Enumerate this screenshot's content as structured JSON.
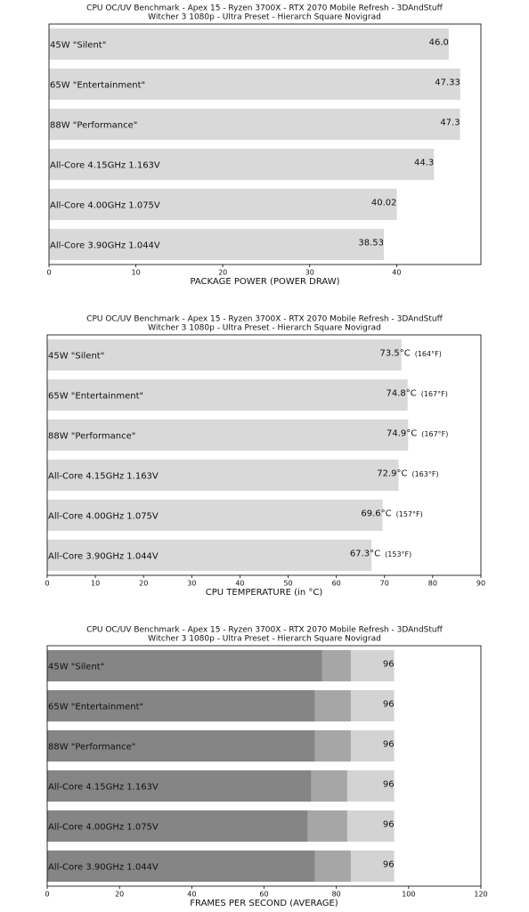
{
  "chart_data": [
    {
      "type": "bar",
      "orientation": "horizontal",
      "title": "CPU OC/UV Benchmark - Apex 15 - Ryzen 3700X - RTX 2070 Mobile Refresh - 3DAndStuff",
      "subtitle": "Witcher 3 1080p - Ultra Preset - Hierarch Square Novigrad",
      "xlabel": "PACKAGE POWER (POWER DRAW)",
      "categories": [
        "45W \"Silent\"",
        "65W \"Entertainment\"",
        "88W \"Performance\"",
        "All-Core 4.15GHz 1.163V",
        "All-Core 4.00GHz 1.075V",
        "All-Core 3.90GHz 1.044V"
      ],
      "values": [
        46.0,
        47.33,
        47.3,
        44.3,
        40.02,
        38.53
      ],
      "value_labels": [
        "46.0",
        "47.33",
        "47.3",
        "44.3",
        "40.02",
        "38.53"
      ],
      "color": "#d9d9d9",
      "xlim": [
        0,
        49.7
      ],
      "xticks": [
        0,
        10,
        20,
        30,
        40
      ]
    },
    {
      "type": "bar",
      "orientation": "horizontal",
      "title": "CPU OC/UV Benchmark - Apex 15 - Ryzen 3700X - RTX 2070 Mobile Refresh - 3DAndStuff",
      "subtitle": "Witcher 3 1080p - Ultra Preset - Hierarch Square Novigrad",
      "xlabel": "CPU TEMPERATURE (in °C)",
      "categories": [
        "45W \"Silent\"",
        "65W \"Entertainment\"",
        "88W \"Performance\"",
        "All-Core 4.15GHz 1.163V",
        "All-Core 4.00GHz 1.075V",
        "All-Core 3.90GHz 1.044V"
      ],
      "values": [
        73.5,
        74.8,
        74.9,
        72.9,
        69.6,
        67.3
      ],
      "value_labels": [
        "73.5°C",
        "74.8°C",
        "74.9°C",
        "72.9°C",
        "69.6°C",
        "67.3°C"
      ],
      "secondary_labels": [
        "(164°F)",
        "(167°F)",
        "(167°F)",
        "(163°F)",
        "(157°F)",
        "(153°F)"
      ],
      "color": "#d9d9d9",
      "xlim": [
        0,
        90
      ],
      "xticks": [
        0,
        10,
        20,
        30,
        40,
        50,
        60,
        70,
        80,
        90
      ]
    },
    {
      "type": "bar",
      "orientation": "horizontal",
      "overlap": true,
      "title": "CPU OC/UV Benchmark - Apex 15 - Ryzen 3700X - RTX 2070 Mobile Refresh - 3DAndStuff",
      "subtitle": "Witcher 3 1080p - Ultra Preset - Hierarch Square Novigrad",
      "xlabel": "FRAMES PER SECOND (AVERAGE)",
      "categories": [
        "45W \"Silent\"",
        "65W \"Entertainment\"",
        "88W \"Performance\"",
        "All-Core 4.15GHz 1.163V",
        "All-Core 4.00GHz 1.075V",
        "All-Core 3.90GHz 1.044V"
      ],
      "series": [
        {
          "color": "#d3d3d3",
          "values": [
            96,
            96,
            96,
            96,
            96,
            96
          ],
          "value_labels": [
            "96",
            "96",
            "96",
            "96",
            "96",
            "96"
          ]
        },
        {
          "color": "#a6a6a6",
          "values": [
            84,
            84,
            84,
            83,
            83,
            84
          ]
        },
        {
          "color": "#858585",
          "values": [
            76,
            74,
            74,
            73,
            72,
            74
          ]
        }
      ],
      "xlim": [
        0,
        120
      ],
      "xticks": [
        0,
        20,
        40,
        60,
        80,
        100,
        120
      ]
    }
  ]
}
